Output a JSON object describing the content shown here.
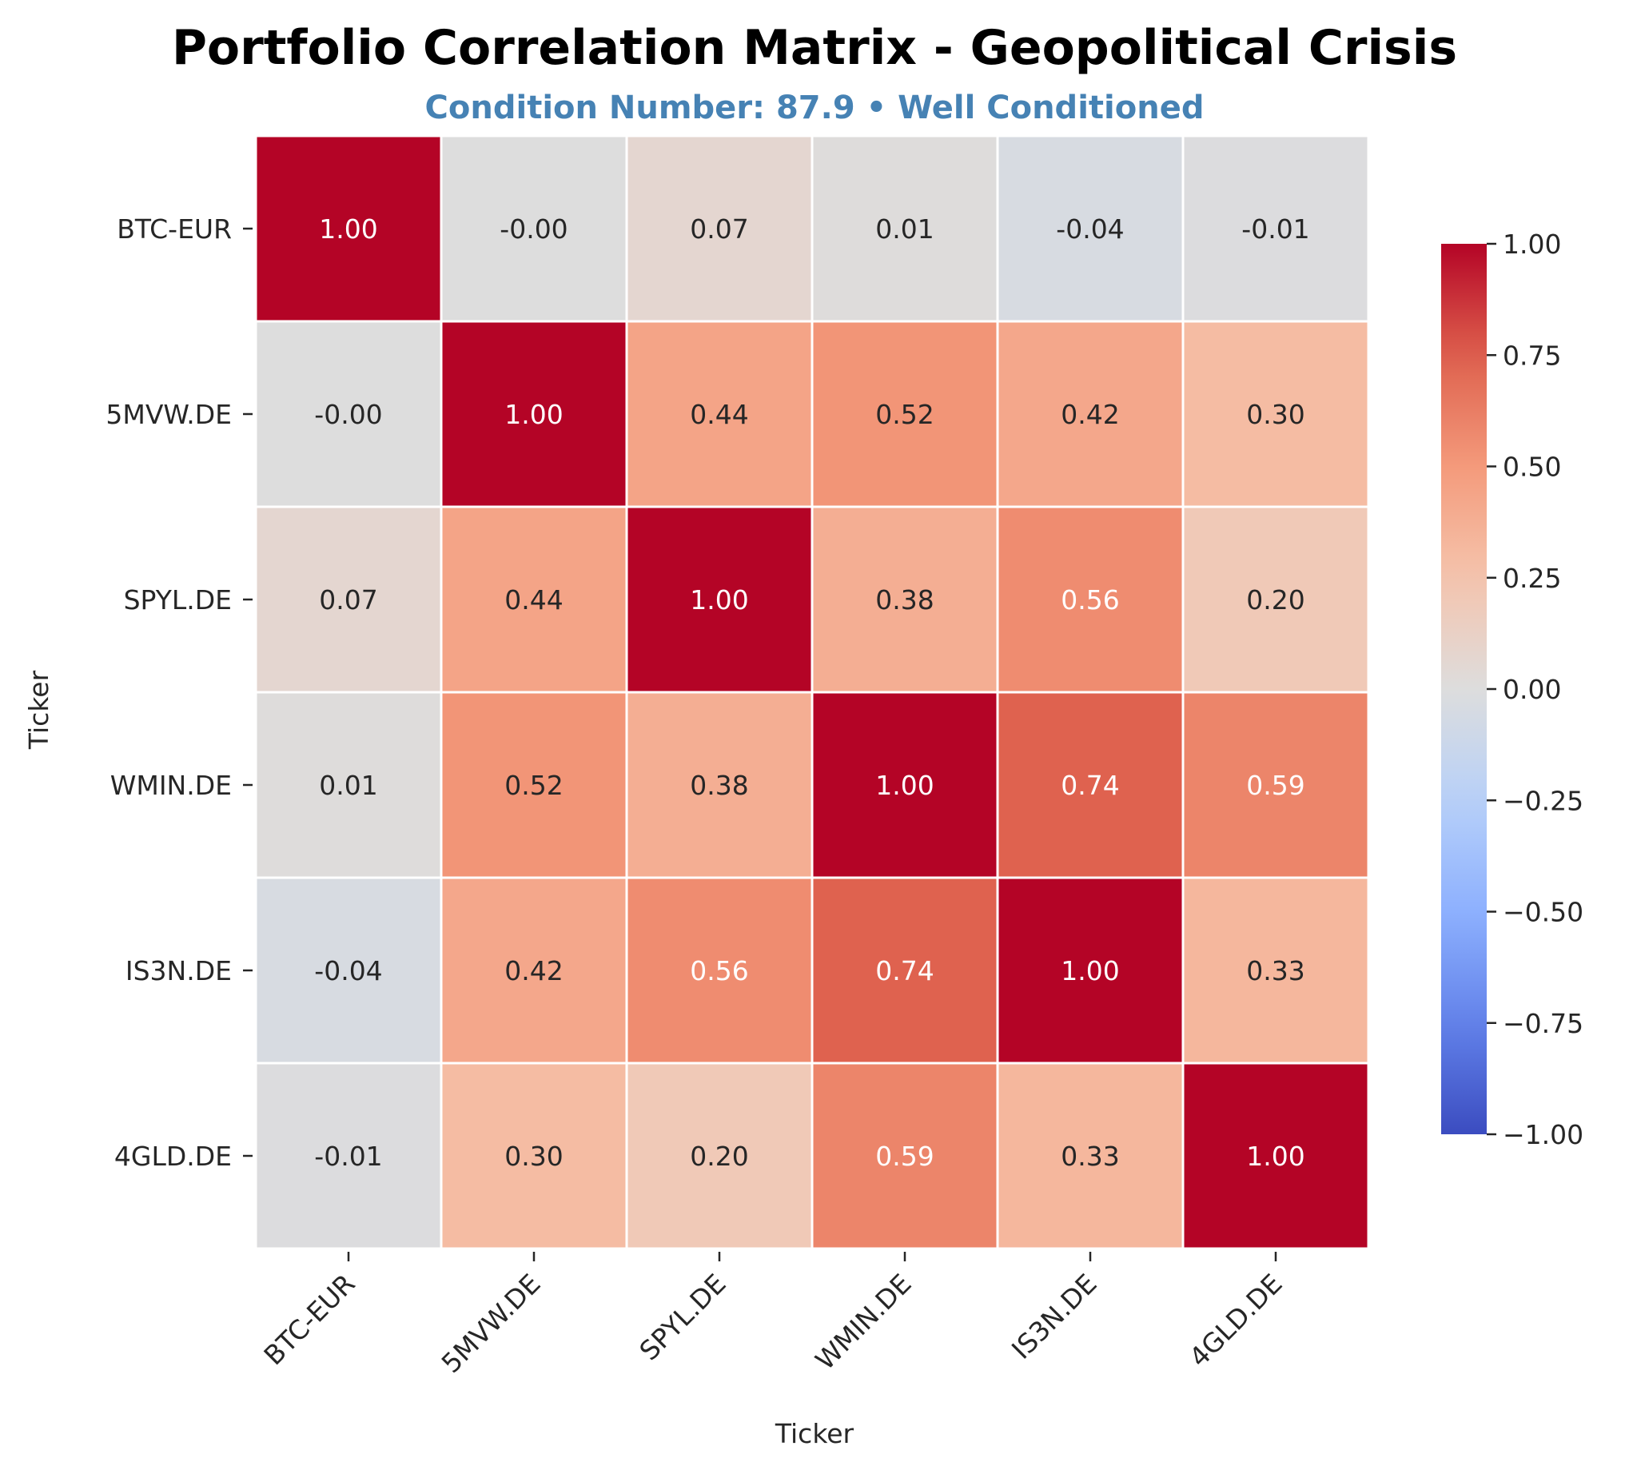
{
  "chart_data": {
    "type": "heatmap",
    "title": "Portfolio Correlation Matrix - Geopolitical Crisis",
    "subtitle": "Condition Number: 87.9 • Well Conditioned",
    "subtitle_color": "#4682b4",
    "xlabel": "Ticker",
    "ylabel": "Ticker",
    "rows": [
      "BTC-EUR",
      "5MVW.DE",
      "SPYL.DE",
      "WMIN.DE",
      "IS3N.DE",
      "4GLD.DE"
    ],
    "columns": [
      "BTC-EUR",
      "5MVW.DE",
      "SPYL.DE",
      "WMIN.DE",
      "IS3N.DE",
      "4GLD.DE"
    ],
    "values": [
      [
        1.0,
        -0.0,
        0.07,
        0.01,
        -0.04,
        -0.01
      ],
      [
        -0.0,
        1.0,
        0.44,
        0.52,
        0.42,
        0.3
      ],
      [
        0.07,
        0.44,
        1.0,
        0.38,
        0.56,
        0.2
      ],
      [
        0.01,
        0.52,
        0.38,
        1.0,
        0.74,
        0.59
      ],
      [
        -0.04,
        0.42,
        0.56,
        0.74,
        1.0,
        0.33
      ],
      [
        -0.01,
        0.3,
        0.2,
        0.59,
        0.33,
        1.0
      ]
    ],
    "cell_labels": [
      [
        "1.00",
        "-0.00",
        "0.07",
        "0.01",
        "-0.04",
        "-0.01"
      ],
      [
        "-0.00",
        "1.00",
        "0.44",
        "0.52",
        "0.42",
        "0.30"
      ],
      [
        "0.07",
        "0.44",
        "1.00",
        "0.38",
        "0.56",
        "0.20"
      ],
      [
        "0.01",
        "0.52",
        "0.38",
        "1.00",
        "0.74",
        "0.59"
      ],
      [
        "-0.04",
        "0.42",
        "0.56",
        "0.74",
        "1.00",
        "0.33"
      ],
      [
        "-0.01",
        "0.30",
        "0.20",
        "0.59",
        "0.33",
        "1.00"
      ]
    ],
    "colormap": "coolwarm",
    "vmin": -1.0,
    "vmax": 1.0,
    "colorbar_ticks": [
      1.0,
      0.75,
      0.5,
      0.25,
      0.0,
      -0.25,
      -0.5,
      -0.75,
      -1.0
    ],
    "colorbar_tick_labels": [
      "1.00",
      "0.75",
      "0.50",
      "0.25",
      "0.00",
      "−0.25",
      "−0.50",
      "−0.75",
      "−1.00"
    ]
  }
}
